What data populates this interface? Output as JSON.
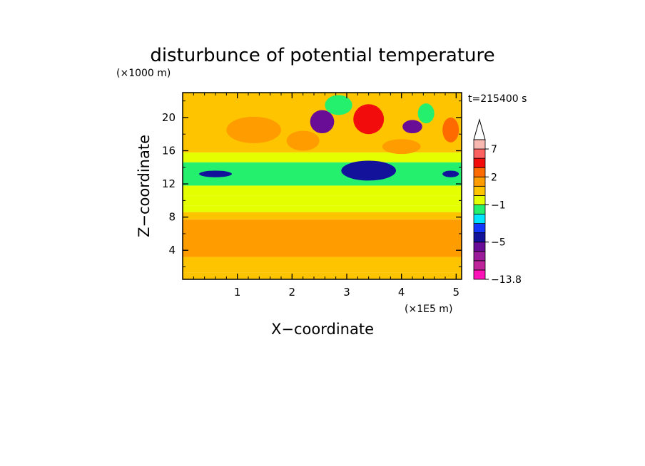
{
  "chart_data": {
    "type": "heatmap",
    "title": "disturbunce of potential temperature",
    "time_label": "t=215400 s",
    "xlabel": "X−coordinate",
    "ylabel": "Z−coordinate",
    "x_unit": "(×1E5 m)",
    "y_unit": "(×1000 m)",
    "x_ticks": [
      "1",
      "2",
      "3",
      "4",
      "5"
    ],
    "y_ticks": [
      "4",
      "8",
      "12",
      "16",
      "20"
    ],
    "x_tick_values": [
      1,
      2,
      3,
      4,
      5
    ],
    "y_tick_values": [
      4,
      8,
      12,
      16,
      20
    ],
    "xlim": [
      0,
      5.1
    ],
    "ylim": [
      0.5,
      23
    ],
    "colorbar": {
      "labels": [
        {
          "text": "7",
          "level": 7
        },
        {
          "text": "2",
          "level": 2
        },
        {
          "text": "−1",
          "level": -1
        },
        {
          "text": "−5",
          "level": -5
        },
        {
          "text": "−13.8",
          "level": -13.8
        }
      ],
      "levels": [
        -13.8,
        -11,
        -9,
        -7,
        -5,
        -4,
        -3,
        -2,
        -1,
        0,
        1,
        2,
        3,
        5,
        7,
        9
      ],
      "colors": [
        "#ff11b8",
        "#c0249b",
        "#9a1c9a",
        "#6a0d96",
        "#12129b",
        "#1238ff",
        "#00e4ff",
        "#24f06e",
        "#e4ff00",
        "#ffc400",
        "#ff9c00",
        "#ff6a00",
        "#f20c0c",
        "#ff6060",
        "#f6b8b0"
      ],
      "extend_top": true
    },
    "bands": [
      {
        "z": [
          0.5,
          1.3
        ],
        "value": 0.0
      },
      {
        "z": [
          1.3,
          3.2
        ],
        "value": 0.4
      },
      {
        "z": [
          3.2,
          7.7
        ],
        "value": 1.2
      },
      {
        "z": [
          7.7,
          8.6
        ],
        "value": 0.3
      },
      {
        "z": [
          8.6,
          9.4
        ],
        "value": -0.6
      },
      {
        "z": [
          9.4,
          10.6
        ],
        "value": -0.3
      },
      {
        "z": [
          10.6,
          11.8
        ],
        "value": -0.6
      },
      {
        "z": [
          11.8,
          14.6
        ],
        "value": -1.5
      },
      {
        "z": [
          14.6,
          15.8
        ],
        "value": -0.4
      },
      {
        "z": [
          15.8,
          23
        ],
        "value": 0.5
      }
    ],
    "features": [
      {
        "x": 2.55,
        "z": 19.5,
        "rx": 0.22,
        "rz": 1.4,
        "value": -6
      },
      {
        "x": 3.4,
        "z": 19.8,
        "rx": 0.28,
        "rz": 1.8,
        "value": 3
      },
      {
        "x": 4.2,
        "z": 18.9,
        "rx": 0.18,
        "rz": 0.8,
        "value": -6
      },
      {
        "x": 3.4,
        "z": 13.6,
        "rx": 0.5,
        "rz": 1.2,
        "value": -4.5
      },
      {
        "x": 0.6,
        "z": 13.2,
        "rx": 0.3,
        "rz": 0.4,
        "value": -4.5
      },
      {
        "x": 4.9,
        "z": 13.2,
        "rx": 0.15,
        "rz": 0.4,
        "value": -4.5
      },
      {
        "x": 1.7,
        "z": 5.6,
        "rx": 0.7,
        "rz": 2.0,
        "value": 1.8
      },
      {
        "x": 3.9,
        "z": 5.2,
        "rx": 0.6,
        "rz": 1.8,
        "value": 1.8
      },
      {
        "x": 2.2,
        "z": 17.2,
        "rx": 0.3,
        "rz": 1.2,
        "value": 1.8
      },
      {
        "x": 4.0,
        "z": 16.5,
        "rx": 0.35,
        "rz": 0.9,
        "value": 1.8
      },
      {
        "x": 1.3,
        "z": 18.5,
        "rx": 0.5,
        "rz": 1.6,
        "value": 1.8
      },
      {
        "x": 4.9,
        "z": 18.5,
        "rx": 0.15,
        "rz": 1.5,
        "value": 2.5
      },
      {
        "x": 2.85,
        "z": 21.5,
        "rx": 0.25,
        "rz": 1.2,
        "value": -1.5
      },
      {
        "x": 4.45,
        "z": 20.5,
        "rx": 0.15,
        "rz": 1.2,
        "value": -1.5
      }
    ]
  }
}
